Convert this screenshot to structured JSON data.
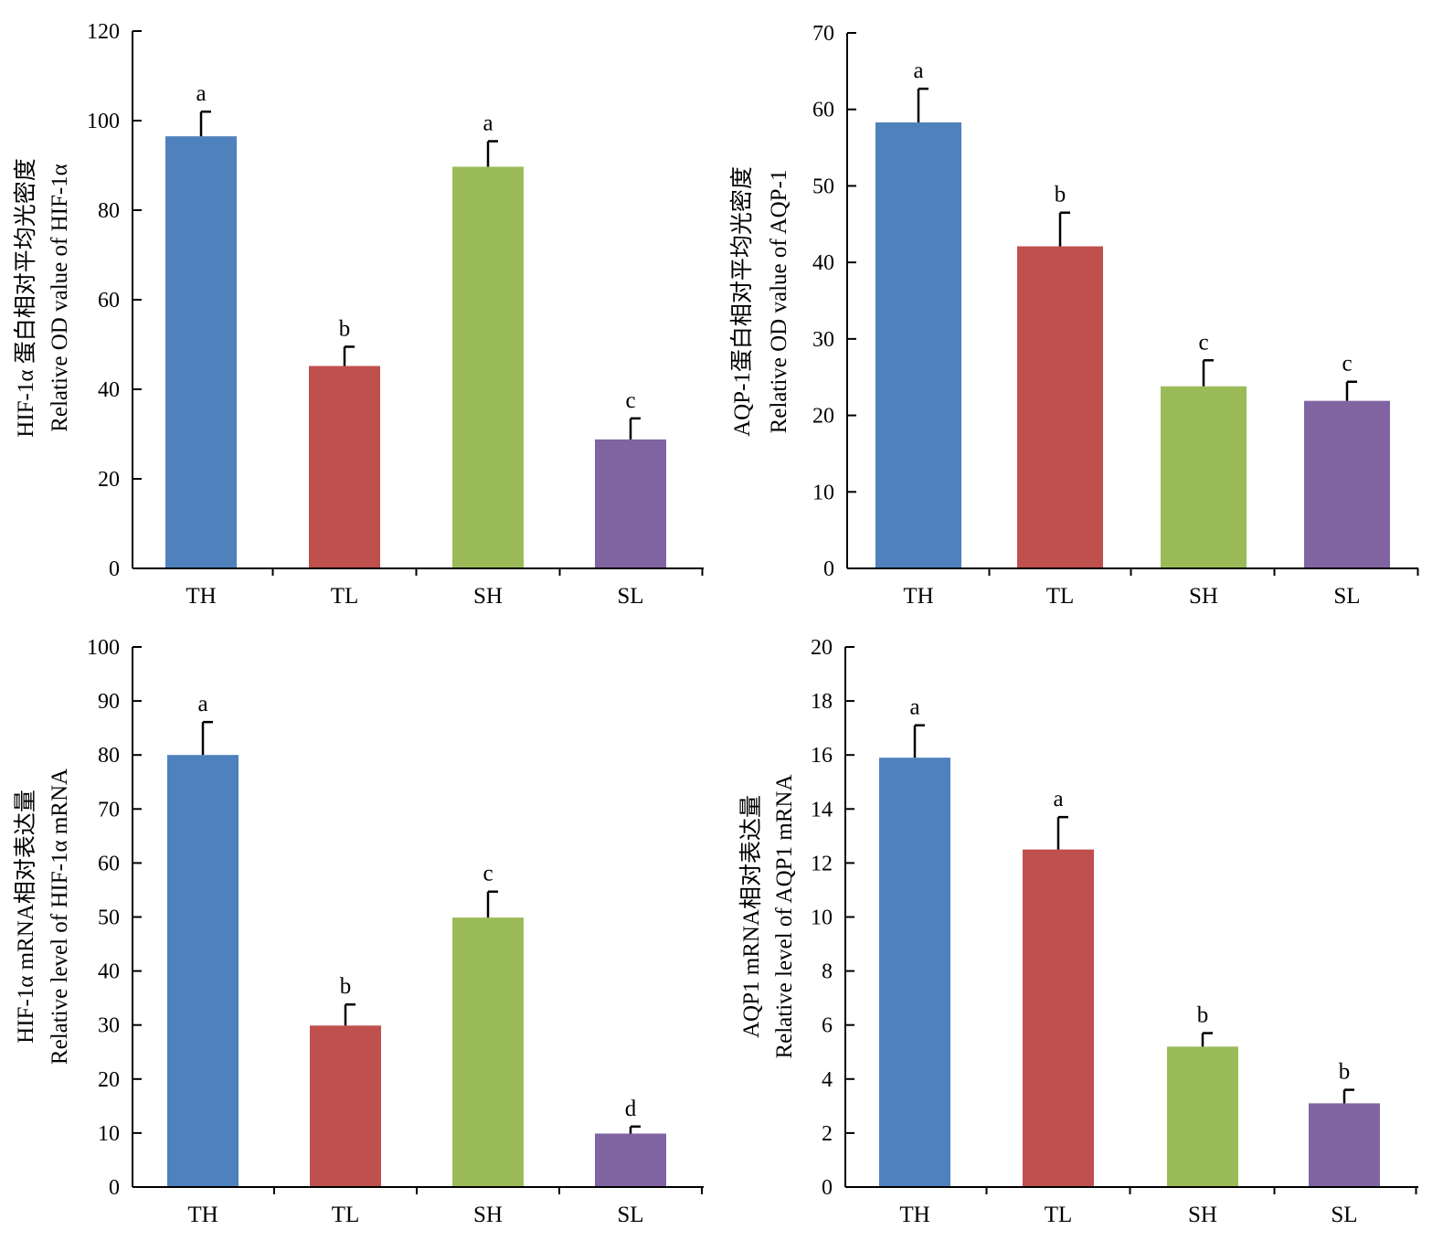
{
  "chart_data": [
    {
      "type": "bar",
      "categories": [
        "TH",
        "TL",
        "SH",
        "SL"
      ],
      "values": [
        96.5,
        45.2,
        89.7,
        28.8
      ],
      "errors": [
        5.5,
        4.3,
        5.7,
        4.7
      ],
      "significance": [
        "a",
        "b",
        "a",
        "c"
      ],
      "colors": [
        "#4f81bd",
        "#c0504d",
        "#9bbb59",
        "#8064a2"
      ],
      "ylabel_lines": [
        "HIF-1α 蛋白相对平均光密度",
        "Relative OD value of  HIF-1α"
      ],
      "ylim": [
        0,
        120
      ],
      "yticks": [
        "0",
        "20",
        "40",
        "60",
        "80",
        "100",
        "120"
      ],
      "grid": false
    },
    {
      "type": "bar",
      "categories": [
        "TH",
        "TL",
        "SH",
        "SL"
      ],
      "values": [
        58.3,
        42.1,
        23.8,
        21.9
      ],
      "errors": [
        4.4,
        4.4,
        3.4,
        2.5
      ],
      "significance": [
        "a",
        "b",
        "c",
        "c"
      ],
      "colors": [
        "#4f81bd",
        "#c0504d",
        "#9bbb59",
        "#8064a2"
      ],
      "ylabel_lines": [
        "AQP-1蛋白相对平均光密度",
        "Relative OD value of  AQP-1"
      ],
      "ylim": [
        0,
        70
      ],
      "yticks": [
        "0",
        "10",
        "20",
        "30",
        "40",
        "50",
        "60",
        "70"
      ],
      "grid": false
    },
    {
      "type": "bar",
      "categories": [
        "TH",
        "TL",
        "SH",
        "SL"
      ],
      "values": [
        80.0,
        29.9,
        49.9,
        9.9
      ],
      "errors": [
        6.1,
        3.9,
        4.8,
        1.3
      ],
      "significance": [
        "a",
        "b",
        "c",
        "d"
      ],
      "colors": [
        "#4f81bd",
        "#c0504d",
        "#9bbb59",
        "#8064a2"
      ],
      "ylabel_lines": [
        "HIF-1α mRNA相对表达量",
        "Relative level of  HIF-1α mRNA"
      ],
      "ylim": [
        0,
        100
      ],
      "yticks": [
        "0",
        "10",
        "20",
        "30",
        "40",
        "50",
        "60",
        "70",
        "80",
        "90",
        "100"
      ],
      "grid": false
    },
    {
      "type": "bar",
      "categories": [
        "TH",
        "TL",
        "SH",
        "SL"
      ],
      "values": [
        15.9,
        12.5,
        5.2,
        3.1
      ],
      "errors": [
        1.2,
        1.2,
        0.5,
        0.5
      ],
      "significance": [
        "a",
        "a",
        "b",
        "b"
      ],
      "colors": [
        "#4f81bd",
        "#c0504d",
        "#9bbb59",
        "#8064a2"
      ],
      "ylabel_lines": [
        "AQP1 mRNA相对表达量",
        "Relative level of AQP1 mRNA"
      ],
      "ylim": [
        0,
        20
      ],
      "yticks": [
        "0",
        "2",
        "4",
        "6",
        "8",
        "10",
        "12",
        "14",
        "16",
        "18",
        "20"
      ],
      "grid": false
    }
  ]
}
